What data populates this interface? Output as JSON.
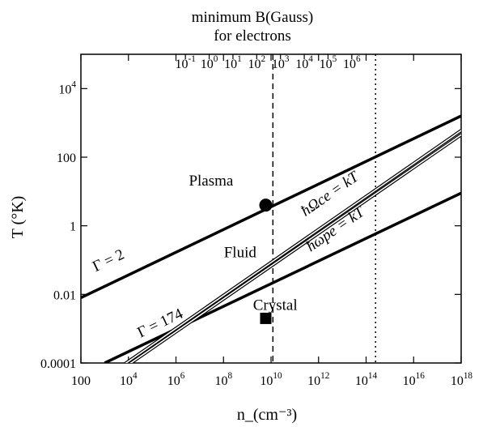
{
  "chart_data": {
    "type": "line",
    "xlabel": "n_(cm⁻³)",
    "ylabel": "T (°K)",
    "top_axis_title": [
      "minimum B(Gauss)",
      "for electrons"
    ],
    "x_scale": "log",
    "y_scale": "log",
    "xlim": [
      100,
      1e+18
    ],
    "ylim": [
      0.0001,
      100000
    ],
    "x_ticks": [
      {
        "value": 100,
        "base": "100",
        "exp": ""
      },
      {
        "value": 10000,
        "base": "10",
        "exp": "4"
      },
      {
        "value": 1000000,
        "base": "10",
        "exp": "6"
      },
      {
        "value": 100000000,
        "base": "10",
        "exp": "8"
      },
      {
        "value": 10000000000.0,
        "base": "10",
        "exp": "10"
      },
      {
        "value": 1000000000000.0,
        "base": "10",
        "exp": "12"
      },
      {
        "value": 100000000000000.0,
        "base": "10",
        "exp": "14"
      },
      {
        "value": 1e+16,
        "base": "10",
        "exp": "16"
      },
      {
        "value": 1e+18,
        "base": "10",
        "exp": "18"
      }
    ],
    "y_ticks": [
      {
        "value": 0.0001,
        "base": "0.0001",
        "exp": ""
      },
      {
        "value": 0.01,
        "base": "0.01",
        "exp": ""
      },
      {
        "value": 1,
        "base": "1",
        "exp": ""
      },
      {
        "value": 100,
        "base": "100",
        "exp": ""
      },
      {
        "value": 10000,
        "base": "10",
        "exp": "4"
      }
    ],
    "top_ticks": [
      {
        "n": 2500000.0,
        "base": "10",
        "exp": "-1"
      },
      {
        "n": 25000000.0,
        "base": "10",
        "exp": "0"
      },
      {
        "n": 250000000.0,
        "base": "10",
        "exp": "1"
      },
      {
        "n": 2500000000.0,
        "base": "10",
        "exp": "2"
      },
      {
        "n": 25000000000.0,
        "base": "10",
        "exp": "3"
      },
      {
        "n": 250000000000.0,
        "base": "10",
        "exp": "4"
      },
      {
        "n": 2500000000000.0,
        "base": "10",
        "exp": "5"
      },
      {
        "n": 25000000000000.0,
        "base": "10",
        "exp": "6"
      }
    ],
    "lines": [
      {
        "label": "Γ = 2",
        "style": "thick",
        "points": [
          [
            100,
            0.008
          ],
          [
            1e+18,
            1600
          ]
        ]
      },
      {
        "label": "Γ = 174",
        "style": "thick",
        "points": [
          [
            1000,
            0.0001
          ],
          [
            1e+18,
            9
          ]
        ]
      },
      {
        "label": "ħΩce = kT",
        "style": "double",
        "points": [
          [
            5000,
            8e-05
          ],
          [
            1e+18,
            600
          ]
        ]
      },
      {
        "label": "ħωpe = kT",
        "style": "double",
        "points": [
          [
            8000,
            8e-05
          ],
          [
            1e+18,
            450
          ]
        ]
      }
    ],
    "vlines": [
      {
        "x": 12000000000.0,
        "style": "dashed"
      },
      {
        "x": 250000000000000.0,
        "style": "dotted"
      }
    ],
    "markers": [
      {
        "shape": "circle",
        "x": 6000000000.0,
        "y": 4
      },
      {
        "shape": "square",
        "x": 6000000000.0,
        "y": 0.002
      }
    ],
    "region_labels": [
      {
        "text": "Plasma",
        "x": 30000000.0,
        "y": 15
      },
      {
        "text": "Fluid",
        "x": 500000000.0,
        "y": 0.12
      },
      {
        "text": "Crystal",
        "x": 15000000000.0,
        "y": 0.0035
      }
    ]
  }
}
